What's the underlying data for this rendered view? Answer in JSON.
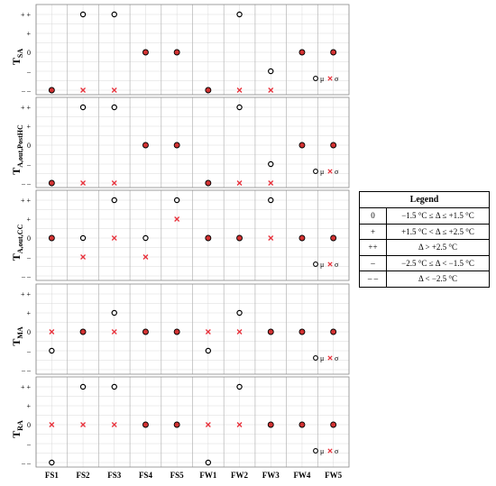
{
  "chart_data": {
    "type": "scatter",
    "categories": [
      "FS1",
      "FS2",
      "FS3",
      "FS4",
      "FS5",
      "FW1",
      "FW2",
      "FW3",
      "FW4",
      "FW5"
    ],
    "y_levels": [
      "– –",
      "–",
      "0",
      "+",
      "+ +"
    ],
    "y_values": [
      -2,
      -1,
      0,
      1,
      2
    ],
    "grid": true,
    "marker_legend": {
      "mu_label": "μ",
      "sigma_label": "σ",
      "mu_marker": "open circle (black)",
      "sigma_marker": "x cross (red)",
      "overlap_marker": "red filled circle with black outline"
    },
    "panels": [
      {
        "label": {
          "base": "T",
          "sub": "SA"
        },
        "mu": [
          -2,
          2,
          2,
          0,
          0,
          -2,
          2,
          -1,
          0,
          0
        ],
        "sigma": [
          -2,
          -2,
          -2,
          0,
          0,
          -2,
          -2,
          -2,
          0,
          0
        ]
      },
      {
        "label": {
          "base": "T",
          "sub": "A,out,PostHC"
        },
        "mu": [
          -2,
          2,
          2,
          0,
          0,
          -2,
          2,
          -1,
          0,
          0
        ],
        "sigma": [
          -2,
          -2,
          -2,
          0,
          0,
          -2,
          -2,
          -2,
          0,
          0
        ]
      },
      {
        "label": {
          "base": "T",
          "sub": "A,out,CC"
        },
        "mu": [
          0,
          0,
          2,
          0,
          2,
          0,
          0,
          2,
          0,
          0
        ],
        "sigma": [
          0,
          -1,
          0,
          -1,
          1,
          0,
          0,
          0,
          0,
          0
        ]
      },
      {
        "label": {
          "base": "T",
          "sub": "MA"
        },
        "mu": [
          -1,
          0,
          1,
          0,
          0,
          -1,
          1,
          0,
          0,
          0
        ],
        "sigma": [
          0,
          0,
          0,
          0,
          0,
          0,
          0,
          0,
          0,
          0
        ]
      },
      {
        "label": {
          "base": "T",
          "sub": "RA"
        },
        "mu": [
          -2,
          2,
          2,
          0,
          0,
          -2,
          2,
          0,
          0,
          0
        ],
        "sigma": [
          0,
          0,
          0,
          0,
          0,
          0,
          0,
          0,
          0,
          0
        ]
      }
    ],
    "colors": {
      "sigma": "#e8303a",
      "overlap_fill": "#d33333",
      "mu": "#000000",
      "grid": "#d9d9d9",
      "frame": "#888888"
    }
  },
  "legend": {
    "title": "Legend",
    "rows": [
      {
        "symbol": "0",
        "description": "−1.5 °C ≤ Δ ≤ +1.5 °C"
      },
      {
        "symbol": "+",
        "description": "+1.5 °C < Δ ≤ +2.5 °C"
      },
      {
        "symbol": "++",
        "description": "Δ > +2.5 °C"
      },
      {
        "symbol": "–",
        "description": "−2.5 °C ≤ Δ < −1.5 °C"
      },
      {
        "symbol": "– –",
        "description": "Δ < −2.5 °C"
      }
    ]
  }
}
